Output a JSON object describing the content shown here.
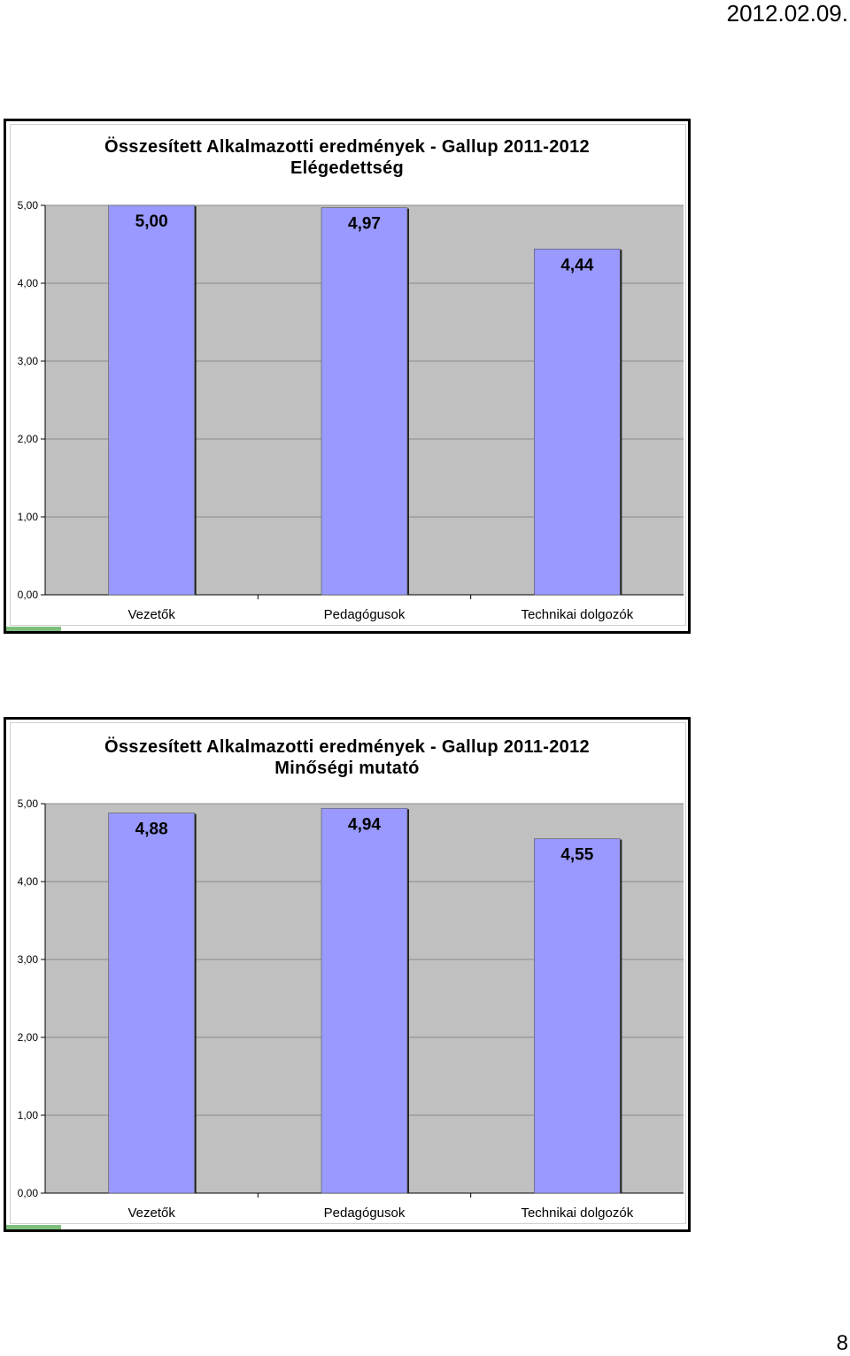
{
  "page": {
    "date": "2012.02.09.",
    "page_number": "8"
  },
  "chart_data": [
    {
      "type": "bar",
      "title": "Összesített Alkalmazotti eredmények - Gallup 2011-2012",
      "subtitle": "Elégedettség",
      "categories": [
        "Vezetők",
        "Pedagógusok",
        "Technikai dolgozók"
      ],
      "values": [
        5.0,
        4.97,
        4.44
      ],
      "value_labels": [
        "5,00",
        "4,97",
        "4,44"
      ],
      "ylim": [
        0,
        5
      ],
      "yticks": [
        "0,00",
        "1,00",
        "2,00",
        "3,00",
        "4,00",
        "5,00"
      ],
      "xlabel": "",
      "ylabel": "",
      "grid": true,
      "legend": "none",
      "colors": {
        "bar": "#9999ff",
        "plot_bg": "#c0c0c0",
        "bar_border": "#000000"
      }
    },
    {
      "type": "bar",
      "title": "Összesített Alkalmazotti eredmények - Gallup 2011-2012",
      "subtitle": "Minőségi mutató",
      "categories": [
        "Vezetők",
        "Pedagógusok",
        "Technikai dolgozók"
      ],
      "values": [
        4.88,
        4.94,
        4.55
      ],
      "value_labels": [
        "4,88",
        "4,94",
        "4,55"
      ],
      "ylim": [
        0,
        5
      ],
      "yticks": [
        "0,00",
        "1,00",
        "2,00",
        "3,00",
        "4,00",
        "5,00"
      ],
      "xlabel": "",
      "ylabel": "",
      "grid": true,
      "legend": "none",
      "colors": {
        "bar": "#9999ff",
        "plot_bg": "#c0c0c0",
        "bar_border": "#000000"
      }
    }
  ]
}
